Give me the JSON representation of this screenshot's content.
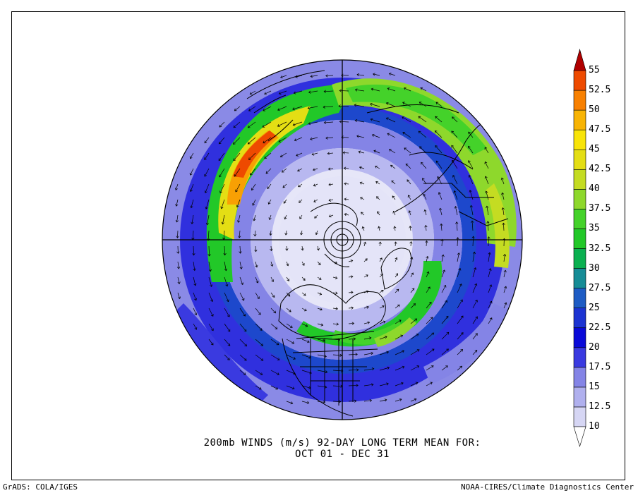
{
  "map": {
    "title_line1": "200mb WINDS (m/s)   92-DAY LONG TERM MEAN FOR:",
    "title_line2": "OCT 01 - DEC 31",
    "footer_left": "GrADS: COLA/IGES",
    "footer_right": "NOAA-CIRES/Climate Diagnostics Center",
    "projection": "north-polar-stereographic",
    "field": "wind speed",
    "units": "m/s"
  },
  "colorbar": {
    "levels": [
      "10",
      "12.5",
      "15",
      "17.5",
      "20",
      "22.5",
      "25",
      "27.5",
      "30",
      "32.5",
      "35",
      "37.5",
      "40",
      "42.5",
      "45",
      "47.5",
      "50",
      "52.5",
      "55"
    ],
    "colors": [
      "#d6d6f4",
      "#b0b0ee",
      "#8484e6",
      "#3a3ae0",
      "#0a0ad8",
      "#1c34d2",
      "#1e5cc4",
      "#168c96",
      "#0ab050",
      "#22c828",
      "#44d22a",
      "#8ed82c",
      "#c4dc22",
      "#e4de14",
      "#f8e408",
      "#f8b404",
      "#f88000",
      "#ee4a00",
      "#cc1400",
      "#b00000"
    ],
    "below_color": "#ffffff"
  },
  "colors": {
    "land_outline": "#000000",
    "wind_vectors": "#000000",
    "background": "#ffffff"
  }
}
